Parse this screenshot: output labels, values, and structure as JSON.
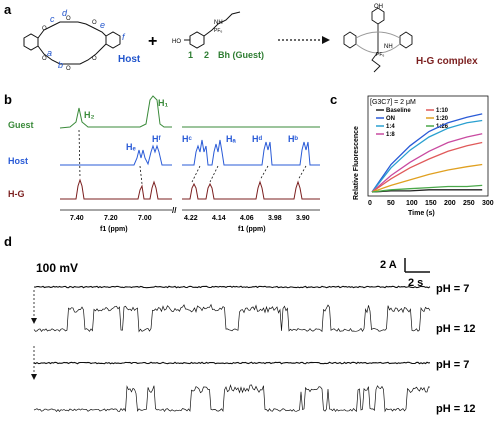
{
  "panels": {
    "a": {
      "letter": "a",
      "host_label": "Host",
      "host_site_labels": [
        "a",
        "b",
        "c",
        "d",
        "e",
        "f"
      ],
      "plus": "+",
      "guest_label": "Bh (Guest)",
      "guest_site_labels": [
        "1",
        "2"
      ],
      "complex_label": "H-G complex",
      "reagent_text": {
        "ho": "HO",
        "oh": "OH",
        "nh": "NH",
        "pf6": "PF₆"
      },
      "colors": {
        "host": "#2255cc",
        "guest": "#2e7d32",
        "complex": "#7b1f1f"
      }
    },
    "b": {
      "letter": "b",
      "rows": [
        {
          "label": "Guest",
          "color": "#3a8a3a"
        },
        {
          "label": "Host",
          "color": "#2a5bd7"
        },
        {
          "label": "H-G",
          "color": "#7b1f1f"
        }
      ],
      "peak_labels": [
        "H₂",
        "H₁",
        "Hₑ",
        "Hᶠ",
        "Hᶜ",
        "Hₐ",
        "Hᵈ",
        "Hᵇ"
      ],
      "left_axis": {
        "ticks": [
          "7.40",
          "7.20",
          "7.00"
        ],
        "label": "f1 (ppm)"
      },
      "right_axis": {
        "ticks": [
          "4.22",
          "4.14",
          "4.06",
          "3.98",
          "3.90"
        ],
        "label": "f1 (ppm)"
      },
      "break_mark": "//"
    },
    "c": {
      "letter": "c",
      "chart_data": {
        "type": "line",
        "title": "",
        "annotation": "[G3C7] = 2 μM",
        "xlabel": "Time (s)",
        "ylabel": "Relative Fluorescence",
        "xlim": [
          0,
          300
        ],
        "ylim": [
          0,
          0.8
        ],
        "xticks": [
          0,
          50,
          100,
          150,
          200,
          250,
          300
        ],
        "legend_placement": "top",
        "series": [
          {
            "name": "Baseline",
            "color": "#222222",
            "x": [
              0,
              50,
              100,
              150,
              200,
              250,
              290
            ],
            "y": [
              0.0,
              0.01,
              0.01,
              0.02,
              0.02,
              0.02,
              0.02
            ]
          },
          {
            "name": "ON",
            "color": "#2a5bd7",
            "x": [
              0,
              50,
              100,
              150,
              200,
              250,
              290
            ],
            "y": [
              0.0,
              0.25,
              0.42,
              0.55,
              0.63,
              0.68,
              0.71
            ]
          },
          {
            "name": "1:4",
            "color": "#2aa0d0",
            "x": [
              0,
              50,
              100,
              150,
              200,
              250,
              290
            ],
            "y": [
              0.0,
              0.22,
              0.38,
              0.5,
              0.58,
              0.63,
              0.65
            ]
          },
          {
            "name": "1:8",
            "color": "#c94aa0",
            "x": [
              0,
              50,
              100,
              150,
              200,
              250,
              290
            ],
            "y": [
              0.0,
              0.15,
              0.27,
              0.37,
              0.45,
              0.5,
              0.53
            ]
          },
          {
            "name": "1:10",
            "color": "#e05a5a",
            "x": [
              0,
              50,
              100,
              150,
              200,
              250,
              290
            ],
            "y": [
              0.0,
              0.12,
              0.22,
              0.3,
              0.37,
              0.42,
              0.45
            ]
          },
          {
            "name": "1:20",
            "color": "#e0a020",
            "x": [
              0,
              50,
              100,
              150,
              200,
              250,
              290
            ],
            "y": [
              0.0,
              0.06,
              0.11,
              0.16,
              0.2,
              0.23,
              0.25
            ]
          },
          {
            "name": "1:26",
            "color": "#4aa84a",
            "x": [
              0,
              50,
              100,
              150,
              200,
              250,
              290
            ],
            "y": [
              0.0,
              0.02,
              0.03,
              0.04,
              0.05,
              0.05,
              0.06
            ]
          }
        ]
      }
    },
    "d": {
      "letter": "d",
      "voltage": "100 mV",
      "scale_current": "2 A",
      "scale_time": "2 s",
      "traces": [
        {
          "label": "pH = 7",
          "kind": "flat"
        },
        {
          "label": "pH = 12",
          "kind": "gating"
        },
        {
          "label": "pH = 7",
          "kind": "flat"
        },
        {
          "label": "pH = 12",
          "kind": "gating"
        }
      ]
    }
  }
}
